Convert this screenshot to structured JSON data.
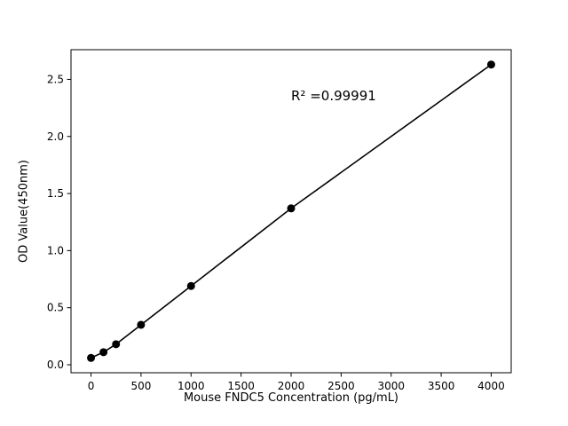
{
  "chart_data": {
    "type": "scatter",
    "series_name": "standard-curve",
    "x": [
      0,
      125,
      250,
      500,
      1000,
      2000,
      4000
    ],
    "y": [
      0.06,
      0.11,
      0.18,
      0.35,
      0.69,
      1.37,
      2.63
    ],
    "xlabel": "Mouse FNDC5 Concentration (pg/mL)",
    "ylabel": "OD Value(450nm)",
    "x_ticks": [
      0,
      500,
      1000,
      1500,
      2000,
      2500,
      3000,
      3500,
      4000
    ],
    "y_ticks": [
      0.0,
      0.5,
      1.0,
      1.5,
      2.0,
      2.5
    ],
    "xlim": [
      -200,
      4200
    ],
    "ylim": [
      -0.07,
      2.76
    ],
    "annotation": {
      "text": "R² =0.99991",
      "x": 2000,
      "y": 2.35
    },
    "line": true,
    "grid": false,
    "legend": "none",
    "marker_color": "#000000",
    "line_color": "#000000",
    "background": "#ffffff"
  }
}
